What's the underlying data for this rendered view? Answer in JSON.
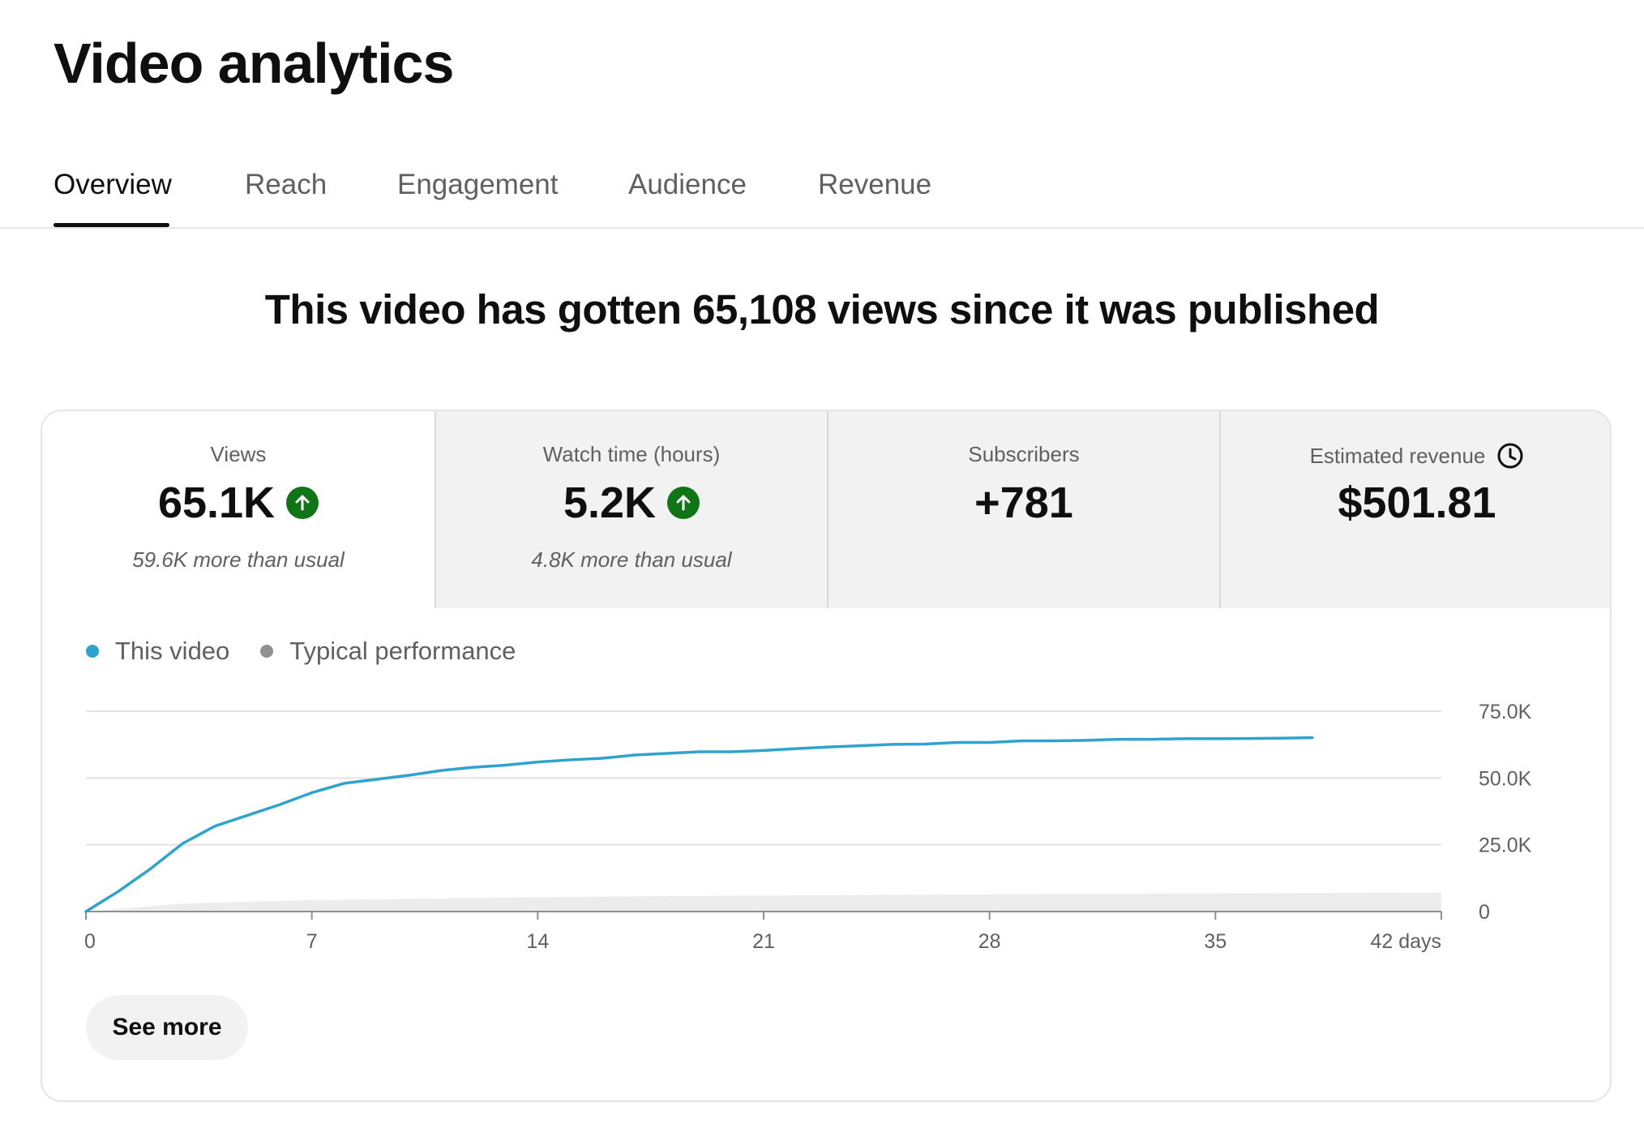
{
  "page": {
    "title": "Video analytics"
  },
  "tabs": [
    {
      "label": "Overview",
      "active": true
    },
    {
      "label": "Reach",
      "active": false
    },
    {
      "label": "Engagement",
      "active": false
    },
    {
      "label": "Audience",
      "active": false
    },
    {
      "label": "Revenue",
      "active": false
    }
  ],
  "headline": "This video has gotten 65,108 views since it was published",
  "metrics": [
    {
      "label": "Views",
      "value": "65.1K",
      "trend": "up",
      "sub": "59.6K more than usual",
      "selected": true
    },
    {
      "label": "Watch time (hours)",
      "value": "5.2K",
      "trend": "up",
      "sub": "4.8K more than usual",
      "selected": false
    },
    {
      "label": "Subscribers",
      "value": "+781",
      "trend": "",
      "sub": "",
      "selected": false
    },
    {
      "label": "Estimated revenue",
      "value": "$501.81",
      "trend": "",
      "sub": "",
      "selected": false,
      "icon": "clock-icon"
    }
  ],
  "colors": {
    "this_video": "#2ea3cf",
    "typical": "#909090",
    "typical_band": "#ececec",
    "trend_up": "#107516"
  },
  "legend": [
    {
      "label": "This video",
      "color": "#2ea3cf"
    },
    {
      "label": "Typical performance",
      "color": "#909090"
    }
  ],
  "chart_data": {
    "type": "line",
    "x_ticks": [
      "0",
      "7",
      "14",
      "21",
      "28",
      "35",
      "42 days"
    ],
    "x_tick_values": [
      0,
      7,
      14,
      21,
      28,
      35,
      42
    ],
    "y_ticks": [
      "0",
      "25.0K",
      "50.0K",
      "75.0K"
    ],
    "y_tick_values": [
      0,
      25000,
      50000,
      75000
    ],
    "xlim": [
      0,
      42
    ],
    "ylim": [
      0,
      75000
    ],
    "grid": true,
    "y_axis_side": "right",
    "series": [
      {
        "name": "This video",
        "x": [
          0,
          1,
          2,
          3,
          4,
          5,
          6,
          7,
          8,
          9,
          10,
          11,
          12,
          13,
          14,
          15,
          16,
          17,
          18,
          19,
          20,
          21,
          22,
          23,
          24,
          25,
          26,
          27,
          28,
          29,
          30,
          31,
          32,
          33,
          34,
          35,
          36,
          37,
          38
        ],
        "y": [
          0,
          7500,
          16000,
          25500,
          32000,
          36000,
          40000,
          44500,
          48000,
          49500,
          51000,
          52800,
          54000,
          54800,
          56000,
          56800,
          57400,
          58600,
          59200,
          59800,
          59800,
          60300,
          61000,
          61600,
          62100,
          62600,
          62700,
          63300,
          63300,
          63900,
          63900,
          64100,
          64500,
          64500,
          64700,
          64700,
          64800,
          64900,
          65108
        ]
      },
      {
        "name": "Typical performance",
        "x": [
          0,
          3,
          7,
          14,
          21,
          28,
          35,
          42
        ],
        "y": [
          0,
          2000,
          3200,
          4200,
          4700,
          5000,
          5300,
          5500
        ],
        "band_high": [
          0,
          3000,
          4300,
          5400,
          6000,
          6400,
          6800,
          7100
        ]
      }
    ]
  },
  "see_more_label": "See more"
}
